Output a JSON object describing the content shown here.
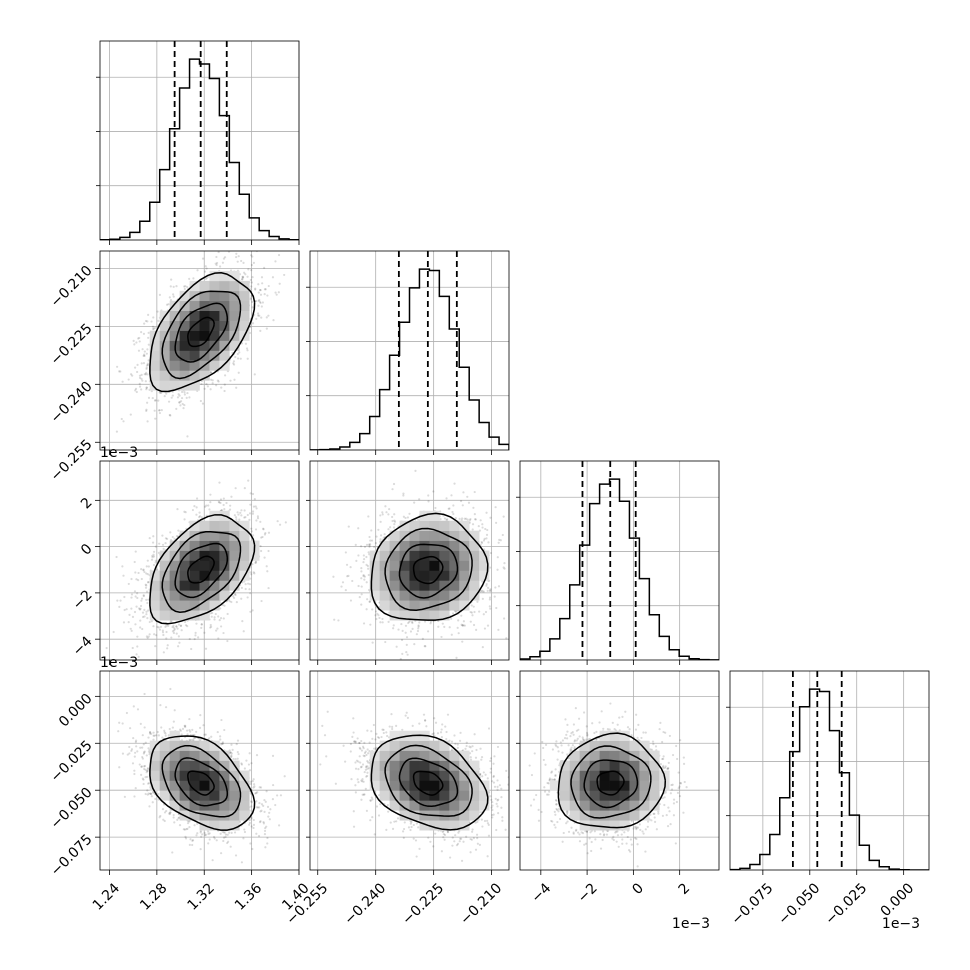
{
  "chart_data": {
    "type": "corner",
    "title": "",
    "grid": true,
    "parameters": [
      {
        "range": [
          1.232,
          1.4
        ],
        "ticks": [
          1.24,
          1.28,
          1.32,
          1.36,
          1.4
        ],
        "tick_labels": [
          "1.24",
          "1.28",
          "1.32",
          "1.36",
          "1.40"
        ],
        "offset_label": "",
        "mean": 1.317,
        "std": 0.022,
        "quantiles": [
          1.295,
          1.317,
          1.339
        ]
      },
      {
        "range": [
          -0.257,
          -0.2055
        ],
        "ticks": [
          -0.255,
          -0.24,
          -0.225,
          -0.21
        ],
        "tick_labels": [
          "−0.255",
          "−0.240",
          "−0.225",
          "−0.210"
        ],
        "offset_label": "",
        "mean": -0.2265,
        "std": 0.0075,
        "quantiles": [
          -0.234,
          -0.2265,
          -0.219
        ]
      },
      {
        "range": [
          -4.9,
          3.7
        ],
        "ticks": [
          -4,
          -2,
          0,
          2
        ],
        "tick_labels": [
          "−4",
          "−2",
          "0",
          "2"
        ],
        "offset_label": "1e−3",
        "mean": -1.0,
        "std": 1.15,
        "quantiles": [
          -2.2,
          -1.0,
          0.1
        ]
      },
      {
        "range": [
          -0.0925,
          0.0135
        ],
        "ticks": [
          -0.075,
          -0.05,
          -0.025,
          0.0
        ],
        "tick_labels": [
          "−0.075",
          "−0.050",
          "−0.025",
          "0.000"
        ],
        "offset_label": "1e−3",
        "mean": -0.046,
        "std": 0.0125,
        "quantiles": [
          -0.059,
          -0.046,
          -0.033
        ]
      }
    ],
    "correlations": [
      [
        1.0,
        0.5,
        0.45,
        -0.4
      ],
      [
        0.5,
        1.0,
        0.1,
        -0.3
      ],
      [
        0.45,
        0.1,
        1.0,
        0.05
      ],
      [
        -0.4,
        -0.3,
        0.05,
        1.0
      ]
    ],
    "histogram_bins": 20,
    "samples_per_panel": 2500
  }
}
